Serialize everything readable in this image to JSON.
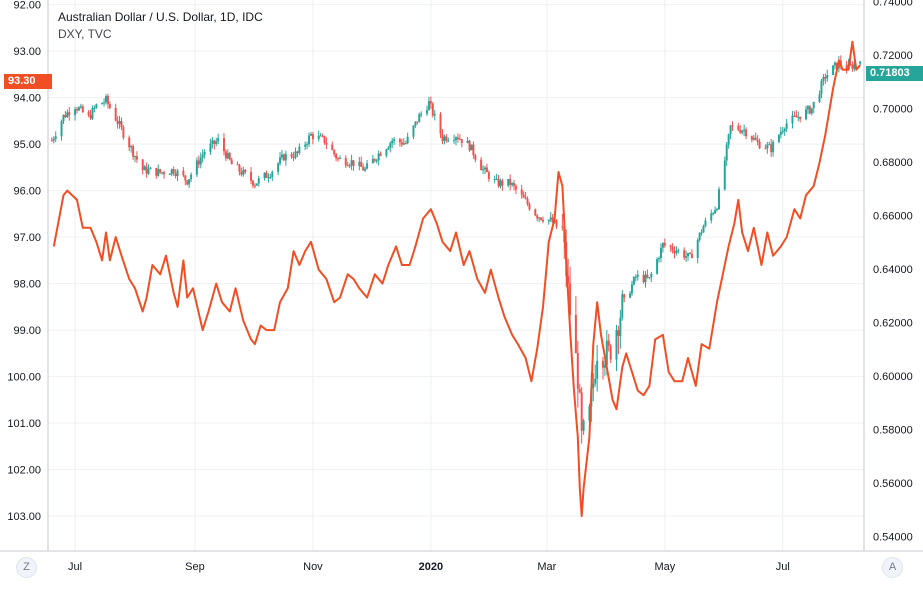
{
  "legend": {
    "title": "Australian Dollar / U.S. Dollar, 1D, IDC",
    "subtitle": "DXY, TVC"
  },
  "price_badges": {
    "left": {
      "label": "93.30",
      "color": "#f04e23"
    },
    "right": {
      "label": "0.71803",
      "color": "#26a69a"
    }
  },
  "scale_buttons": {
    "left": "Z",
    "right": "A"
  },
  "colors": {
    "dxy_line": "#f04e23",
    "candle_up": "#26a69a",
    "candle_down": "#ef5350",
    "grid": "#eef0f3",
    "axis": "#c7cad1"
  },
  "chart_data": {
    "type": "line",
    "x_ticks": [
      {
        "label": "Jul",
        "date": "2019-07-01",
        "bold": false
      },
      {
        "label": "Sep",
        "date": "2019-09-01",
        "bold": false
      },
      {
        "label": "Nov",
        "date": "2019-11-01",
        "bold": false
      },
      {
        "label": "2020",
        "date": "2020-01-01",
        "bold": true
      },
      {
        "label": "Mar",
        "date": "2020-03-01",
        "bold": false
      },
      {
        "label": "May",
        "date": "2020-05-01",
        "bold": false
      },
      {
        "label": "Jul",
        "date": "2020-07-01",
        "bold": false
      }
    ],
    "x_range": [
      "2019-06-17",
      "2020-08-12"
    ],
    "left_axis": {
      "reversed": true,
      "range": [
        91.9,
        103.75
      ],
      "ticks": [
        "92.00",
        "93.00",
        "94.00",
        "95.00",
        "96.00",
        "97.00",
        "98.00",
        "99.00",
        "100.00",
        "101.00",
        "102.00",
        "103.00"
      ]
    },
    "right_axis": {
      "range": [
        0.5345,
        0.7405
      ],
      "ticks": [
        "0.74000",
        "0.72000",
        "0.70000",
        "0.68000",
        "0.66000",
        "0.64000",
        "0.62000",
        "0.60000",
        "0.58000",
        "0.56000",
        "0.54000"
      ]
    },
    "series": [
      {
        "name": "DXY, TVC",
        "type": "line",
        "axis": "left",
        "points": [
          [
            "2019-06-20",
            97.2
          ],
          [
            "2019-06-25",
            96.1
          ],
          [
            "2019-06-27",
            96.0
          ],
          [
            "2019-07-02",
            96.2
          ],
          [
            "2019-07-05",
            96.8
          ],
          [
            "2019-07-09",
            96.8
          ],
          [
            "2019-07-12",
            97.1
          ],
          [
            "2019-07-15",
            97.5
          ],
          [
            "2019-07-17",
            96.9
          ],
          [
            "2019-07-19",
            97.5
          ],
          [
            "2019-07-22",
            97.0
          ],
          [
            "2019-07-25",
            97.4
          ],
          [
            "2019-07-29",
            97.9
          ],
          [
            "2019-08-01",
            98.1
          ],
          [
            "2019-08-05",
            98.6
          ],
          [
            "2019-08-07",
            98.3
          ],
          [
            "2019-08-10",
            97.6
          ],
          [
            "2019-08-14",
            97.8
          ],
          [
            "2019-08-17",
            97.4
          ],
          [
            "2019-08-21",
            98.2
          ],
          [
            "2019-08-23",
            98.5
          ],
          [
            "2019-08-26",
            97.5
          ],
          [
            "2019-08-28",
            98.3
          ],
          [
            "2019-08-31",
            98.1
          ],
          [
            "2019-09-05",
            99.0
          ],
          [
            "2019-09-08",
            98.6
          ],
          [
            "2019-09-12",
            98.0
          ],
          [
            "2019-09-15",
            98.4
          ],
          [
            "2019-09-19",
            98.6
          ],
          [
            "2019-09-22",
            98.1
          ],
          [
            "2019-09-26",
            98.8
          ],
          [
            "2019-09-30",
            99.2
          ],
          [
            "2019-10-02",
            99.3
          ],
          [
            "2019-10-05",
            98.9
          ],
          [
            "2019-10-08",
            99.0
          ],
          [
            "2019-10-12",
            99.0
          ],
          [
            "2019-10-15",
            98.4
          ],
          [
            "2019-10-19",
            98.1
          ],
          [
            "2019-10-22",
            97.3
          ],
          [
            "2019-10-25",
            97.6
          ],
          [
            "2019-10-28",
            97.3
          ],
          [
            "2019-10-31",
            97.1
          ],
          [
            "2019-11-04",
            97.7
          ],
          [
            "2019-11-08",
            97.9
          ],
          [
            "2019-11-12",
            98.4
          ],
          [
            "2019-11-15",
            98.3
          ],
          [
            "2019-11-19",
            97.8
          ],
          [
            "2019-11-22",
            97.9
          ],
          [
            "2019-11-25",
            98.1
          ],
          [
            "2019-11-29",
            98.3
          ],
          [
            "2019-12-03",
            97.8
          ],
          [
            "2019-12-07",
            98.0
          ],
          [
            "2019-12-10",
            97.6
          ],
          [
            "2019-12-14",
            97.2
          ],
          [
            "2019-12-17",
            97.6
          ],
          [
            "2019-12-21",
            97.6
          ],
          [
            "2019-12-24",
            97.2
          ],
          [
            "2019-12-28",
            96.6
          ],
          [
            "2020-01-01",
            96.4
          ],
          [
            "2020-01-04",
            96.7
          ],
          [
            "2020-01-07",
            97.1
          ],
          [
            "2020-01-11",
            97.3
          ],
          [
            "2020-01-14",
            96.9
          ],
          [
            "2020-01-18",
            97.6
          ],
          [
            "2020-01-21",
            97.3
          ],
          [
            "2020-01-25",
            97.9
          ],
          [
            "2020-01-29",
            98.2
          ],
          [
            "2020-02-01",
            97.7
          ],
          [
            "2020-02-05",
            98.3
          ],
          [
            "2020-02-08",
            98.7
          ],
          [
            "2020-02-12",
            99.1
          ],
          [
            "2020-02-15",
            99.3
          ],
          [
            "2020-02-19",
            99.6
          ],
          [
            "2020-02-22",
            100.1
          ],
          [
            "2020-02-25",
            99.4
          ],
          [
            "2020-02-28",
            98.5
          ],
          [
            "2020-03-02",
            97.1
          ],
          [
            "2020-03-05",
            96.6
          ],
          [
            "2020-03-07",
            95.6
          ],
          [
            "2020-03-09",
            95.9
          ],
          [
            "2020-03-11",
            97.5
          ],
          [
            "2020-03-13",
            99.0
          ],
          [
            "2020-03-15",
            100.3
          ],
          [
            "2020-03-17",
            101.3
          ],
          [
            "2020-03-18",
            102.4
          ],
          [
            "2020-03-19",
            103.0
          ],
          [
            "2020-03-20",
            102.4
          ],
          [
            "2020-03-23",
            101.3
          ],
          [
            "2020-03-25",
            99.3
          ],
          [
            "2020-03-27",
            98.4
          ],
          [
            "2020-03-29",
            99.1
          ],
          [
            "2020-04-01",
            99.8
          ],
          [
            "2020-04-04",
            100.5
          ],
          [
            "2020-04-06",
            100.7
          ],
          [
            "2020-04-09",
            99.8
          ],
          [
            "2020-04-11",
            99.5
          ],
          [
            "2020-04-14",
            99.9
          ],
          [
            "2020-04-17",
            100.3
          ],
          [
            "2020-04-20",
            100.4
          ],
          [
            "2020-04-23",
            100.2
          ],
          [
            "2020-04-26",
            99.2
          ],
          [
            "2020-04-30",
            99.1
          ],
          [
            "2020-05-03",
            99.9
          ],
          [
            "2020-05-06",
            100.1
          ],
          [
            "2020-05-10",
            100.1
          ],
          [
            "2020-05-13",
            99.6
          ],
          [
            "2020-05-17",
            100.2
          ],
          [
            "2020-05-20",
            99.3
          ],
          [
            "2020-05-24",
            99.4
          ],
          [
            "2020-05-28",
            98.4
          ],
          [
            "2020-05-31",
            97.8
          ],
          [
            "2020-06-03",
            97.2
          ],
          [
            "2020-06-06",
            96.7
          ],
          [
            "2020-06-08",
            96.2
          ],
          [
            "2020-06-10",
            96.9
          ],
          [
            "2020-06-13",
            97.3
          ],
          [
            "2020-06-16",
            96.8
          ],
          [
            "2020-06-20",
            97.6
          ],
          [
            "2020-06-23",
            96.9
          ],
          [
            "2020-06-26",
            97.4
          ],
          [
            "2020-06-30",
            97.2
          ],
          [
            "2020-07-03",
            97.0
          ],
          [
            "2020-07-07",
            96.4
          ],
          [
            "2020-07-10",
            96.6
          ],
          [
            "2020-07-13",
            96.1
          ],
          [
            "2020-07-17",
            95.9
          ],
          [
            "2020-07-20",
            95.4
          ],
          [
            "2020-07-23",
            94.8
          ],
          [
            "2020-07-27",
            93.8
          ],
          [
            "2020-07-30",
            93.2
          ],
          [
            "2020-08-01",
            93.4
          ],
          [
            "2020-08-04",
            93.4
          ],
          [
            "2020-08-06",
            92.8
          ],
          [
            "2020-08-08",
            93.4
          ],
          [
            "2020-08-10",
            93.3
          ]
        ]
      },
      {
        "name": "Australian Dollar / U.S. Dollar, 1D, IDC",
        "type": "candlestick",
        "axis": "right",
        "points": [
          [
            "2019-06-19",
            0.688
          ],
          [
            "2019-06-25",
            0.697
          ],
          [
            "2019-07-01",
            0.701
          ],
          [
            "2019-07-08",
            0.6965
          ],
          [
            "2019-07-12",
            0.701
          ],
          [
            "2019-07-17",
            0.703
          ],
          [
            "2019-07-23",
            0.695
          ],
          [
            "2019-07-30",
            0.685
          ],
          [
            "2019-08-05",
            0.677
          ],
          [
            "2019-08-14",
            0.676
          ],
          [
            "2019-08-21",
            0.677
          ],
          [
            "2019-08-28",
            0.673
          ],
          [
            "2019-09-06",
            0.684
          ],
          [
            "2019-09-13",
            0.688
          ],
          [
            "2019-09-20",
            0.679
          ],
          [
            "2019-09-27",
            0.675
          ],
          [
            "2019-10-02",
            0.672
          ],
          [
            "2019-10-10",
            0.676
          ],
          [
            "2019-10-17",
            0.682
          ],
          [
            "2019-10-24",
            0.683
          ],
          [
            "2019-10-31",
            0.69
          ],
          [
            "2019-11-07",
            0.688
          ],
          [
            "2019-11-14",
            0.681
          ],
          [
            "2019-11-21",
            0.68
          ],
          [
            "2019-11-28",
            0.677
          ],
          [
            "2019-12-05",
            0.683
          ],
          [
            "2019-12-12",
            0.688
          ],
          [
            "2019-12-19",
            0.687
          ],
          [
            "2019-12-26",
            0.697
          ],
          [
            "2019-12-31",
            0.702
          ],
          [
            "2020-01-07",
            0.689
          ],
          [
            "2020-01-14",
            0.69
          ],
          [
            "2020-01-21",
            0.686
          ],
          [
            "2020-01-28",
            0.677
          ],
          [
            "2020-02-04",
            0.672
          ],
          [
            "2020-02-11",
            0.672
          ],
          [
            "2020-02-18",
            0.666
          ],
          [
            "2020-02-25",
            0.66
          ],
          [
            "2020-03-03",
            0.658
          ],
          [
            "2020-03-09",
            0.654
          ],
          [
            "2020-03-13",
            0.624
          ],
          [
            "2020-03-17",
            0.6
          ],
          [
            "2020-03-19",
            0.576
          ],
          [
            "2020-03-23",
            0.585
          ],
          [
            "2020-03-27",
            0.61
          ],
          [
            "2020-04-02",
            0.608
          ],
          [
            "2020-04-09",
            0.626
          ],
          [
            "2020-04-16",
            0.637
          ],
          [
            "2020-04-23",
            0.636
          ],
          [
            "2020-04-30",
            0.649
          ],
          [
            "2020-05-07",
            0.647
          ],
          [
            "2020-05-14",
            0.644
          ],
          [
            "2020-05-21",
            0.656
          ],
          [
            "2020-05-28",
            0.664
          ],
          [
            "2020-06-04",
            0.693
          ],
          [
            "2020-06-11",
            0.692
          ],
          [
            "2020-06-18",
            0.687
          ],
          [
            "2020-06-25",
            0.685
          ],
          [
            "2020-07-02",
            0.694
          ],
          [
            "2020-07-09",
            0.697
          ],
          [
            "2020-07-16",
            0.7
          ],
          [
            "2020-07-23",
            0.712
          ],
          [
            "2020-07-30",
            0.717
          ],
          [
            "2020-08-04",
            0.715
          ],
          [
            "2020-08-10",
            0.718
          ]
        ]
      }
    ],
    "grid": true,
    "legend_position": "top-left"
  }
}
